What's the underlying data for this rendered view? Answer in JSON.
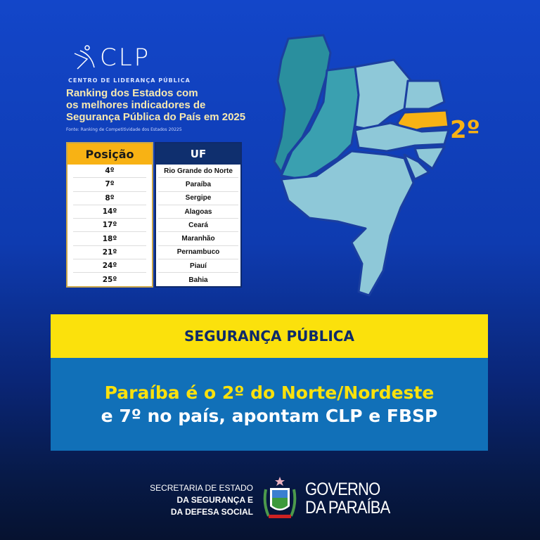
{
  "logo": {
    "text": "CLP",
    "subtitle": "CENTRO DE LIDERANÇA PÚBLICA"
  },
  "ranking": {
    "title_lines": [
      "Ranking dos Estados com",
      "os melhores indicadores de",
      "Segurança Pública do País em 2025"
    ],
    "source": "Fonte: Ranking de Competitividade dos Estados 20225",
    "headers": {
      "position": "Posição",
      "state": "UF"
    },
    "rows": [
      {
        "position": "4º",
        "state": "Rio Grande do Norte"
      },
      {
        "position": "7º",
        "state": "Paraíba"
      },
      {
        "position": "8º",
        "state": "Sergipe"
      },
      {
        "position": "14º",
        "state": "Alagoas"
      },
      {
        "position": "17º",
        "state": "Ceará"
      },
      {
        "position": "18º",
        "state": "Maranhão"
      },
      {
        "position": "21º",
        "state": "Pernambuco"
      },
      {
        "position": "24º",
        "state": "Piauí"
      },
      {
        "position": "25º",
        "state": "Bahia"
      }
    ]
  },
  "map": {
    "highlight_label": "2º",
    "highlight_color": "#f8b214"
  },
  "banner": {
    "category": "SEGURANÇA PÚBLICA",
    "headline_line1": "Paraíba é o 2º do Norte/Nordeste",
    "headline_line2": "e 7º no país, apontam CLP e FBSP"
  },
  "footer": {
    "secretaria": [
      "SECRETARIA DE ESTADO",
      "DA SEGURANÇA E",
      "DA DEFESA SOCIAL"
    ],
    "governo": [
      "GOVERNO",
      "DA PARAÍBA"
    ]
  },
  "colors": {
    "yellow": "#fbe10c",
    "orange": "#f8b214",
    "blue_bar": "#1170b8",
    "navy": "#0f2f6e"
  }
}
